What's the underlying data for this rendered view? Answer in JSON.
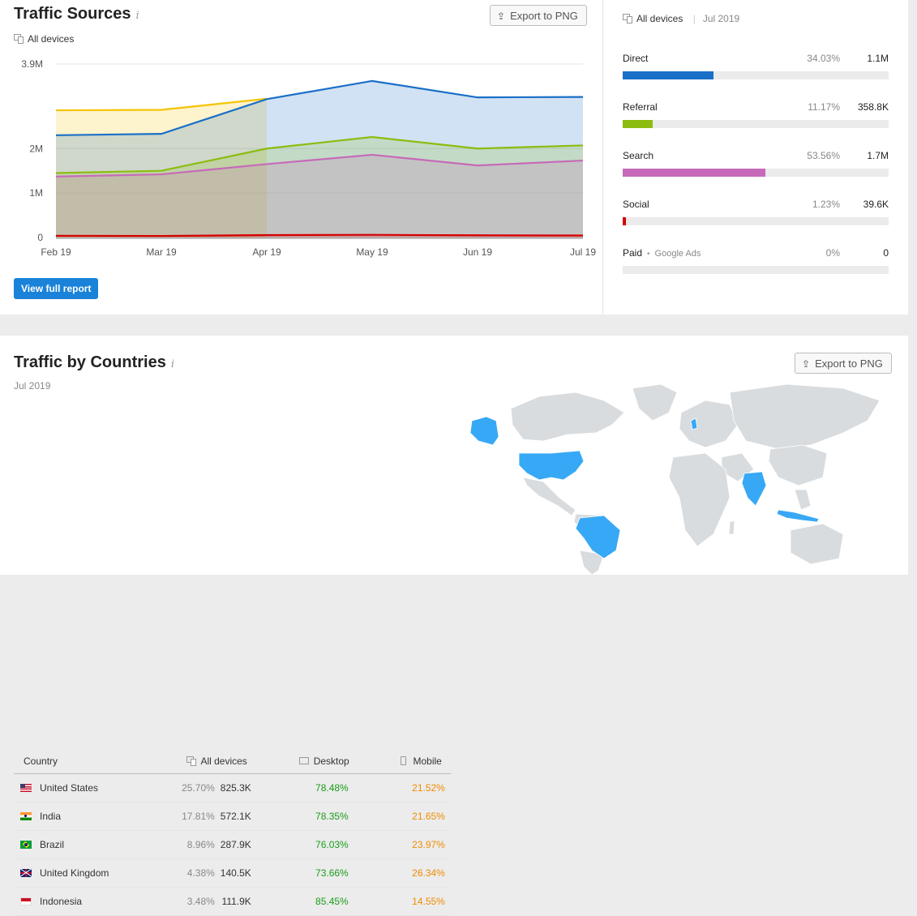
{
  "traffic_sources": {
    "title": "Traffic Sources",
    "info_icon": "i",
    "export_label": "Export to PNG",
    "device_label": "All devices",
    "view_full_report": "View full report",
    "period": "Jul 2019",
    "right_device_label": "All devices",
    "sources": [
      {
        "label": "Direct",
        "percent": "34.03%",
        "value": "1.1M",
        "share": 34.03,
        "color": "#1a6fc7"
      },
      {
        "label": "Referral",
        "percent": "11.17%",
        "value": "358.8K",
        "share": 11.17,
        "color": "#8cbc10"
      },
      {
        "label": "Search",
        "percent": "53.56%",
        "value": "1.7M",
        "share": 53.56,
        "color": "#c66ab9"
      },
      {
        "label": "Social",
        "percent": "1.23%",
        "value": "39.6K",
        "share": 1.23,
        "color": "#d60000"
      },
      {
        "label": "Paid",
        "sublabel": "Google Ads",
        "percent": "0%",
        "value": "0",
        "share": 0,
        "color": "#f5c400"
      }
    ]
  },
  "chart_data": {
    "type": "area",
    "stacked": false,
    "categories": [
      "Feb 19",
      "Mar 19",
      "Apr 19",
      "May 19",
      "Jun 19",
      "Jul 19"
    ],
    "y_tick_labels": [
      "0",
      "1M",
      "2M",
      "3.9M"
    ],
    "y_ticks": [
      0,
      1000000,
      2000000,
      3900000
    ],
    "ylim": [
      0,
      3900000
    ],
    "grid": true,
    "series": [
      {
        "color": "#f5c400",
        "values": [
          2860000,
          2870000,
          3120000,
          null,
          null,
          null
        ]
      },
      {
        "color": "#1a6fc7",
        "values": [
          2300000,
          2330000,
          3110000,
          3520000,
          3150000,
          3160000
        ]
      },
      {
        "color": "#8cbc10",
        "values": [
          1450000,
          1500000,
          2000000,
          2260000,
          2000000,
          2070000
        ]
      },
      {
        "color": "#c66ab9",
        "values": [
          1370000,
          1420000,
          1650000,
          1860000,
          1620000,
          1730000
        ]
      },
      {
        "color": "#d60000",
        "values": [
          40000,
          35000,
          55000,
          60000,
          50000,
          45000
        ]
      }
    ]
  },
  "traffic_by_countries": {
    "title": "Traffic by Countries",
    "info_icon": "i",
    "export_label": "Export to PNG",
    "period": "Jul 2019",
    "columns": {
      "country": "Country",
      "all_devices": "All devices",
      "desktop": "Desktop",
      "mobile": "Mobile"
    },
    "rows": [
      {
        "country": "United States",
        "share": "25.70%",
        "all": "825.3K",
        "desktop": "78.48%",
        "mobile": "21.52%",
        "flag": "us-flag"
      },
      {
        "country": "India",
        "share": "17.81%",
        "all": "572.1K",
        "desktop": "78.35%",
        "mobile": "21.65%",
        "flag": "india-flag"
      },
      {
        "country": "Brazil",
        "share": "8.96%",
        "all": "287.9K",
        "desktop": "76.03%",
        "mobile": "23.97%",
        "flag": "brazil-flag"
      },
      {
        "country": "United Kingdom",
        "share": "4.38%",
        "all": "140.5K",
        "desktop": "73.66%",
        "mobile": "26.34%",
        "flag": "uk-flag"
      },
      {
        "country": "Indonesia",
        "share": "3.48%",
        "all": "111.9K",
        "desktop": "85.45%",
        "mobile": "14.55%",
        "flag": "indonesia-flag"
      }
    ],
    "map_highlight_color": "#37a8f5",
    "map_base_color": "#d9dcdf"
  }
}
